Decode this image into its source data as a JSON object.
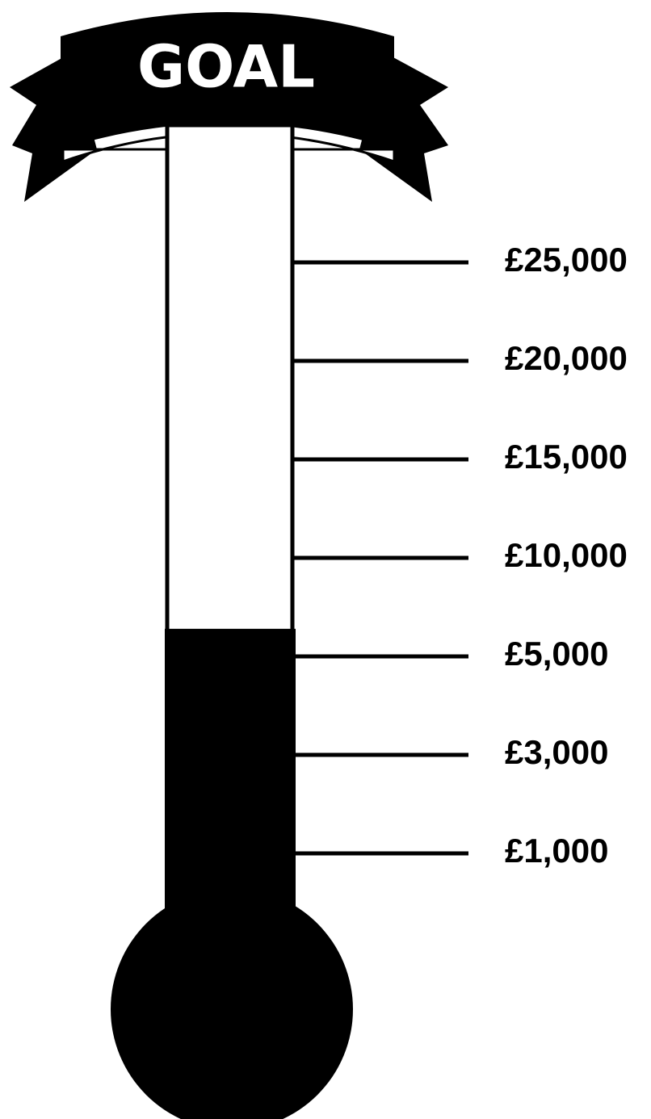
{
  "chart_data": {
    "type": "thermometer",
    "title": "GOAL",
    "value": 6400,
    "color": "#000000",
    "yticks": [
      {
        "value": 1000,
        "label": "£1,000"
      },
      {
        "value": 3000,
        "label": "£3,000"
      },
      {
        "value": 5000,
        "label": "£5,000"
      },
      {
        "value": 10000,
        "label": "£10,000"
      },
      {
        "value": 15000,
        "label": "£15,000"
      },
      {
        "value": 20000,
        "label": "£20,000"
      },
      {
        "value": 25000,
        "label": "£25,000"
      }
    ]
  }
}
